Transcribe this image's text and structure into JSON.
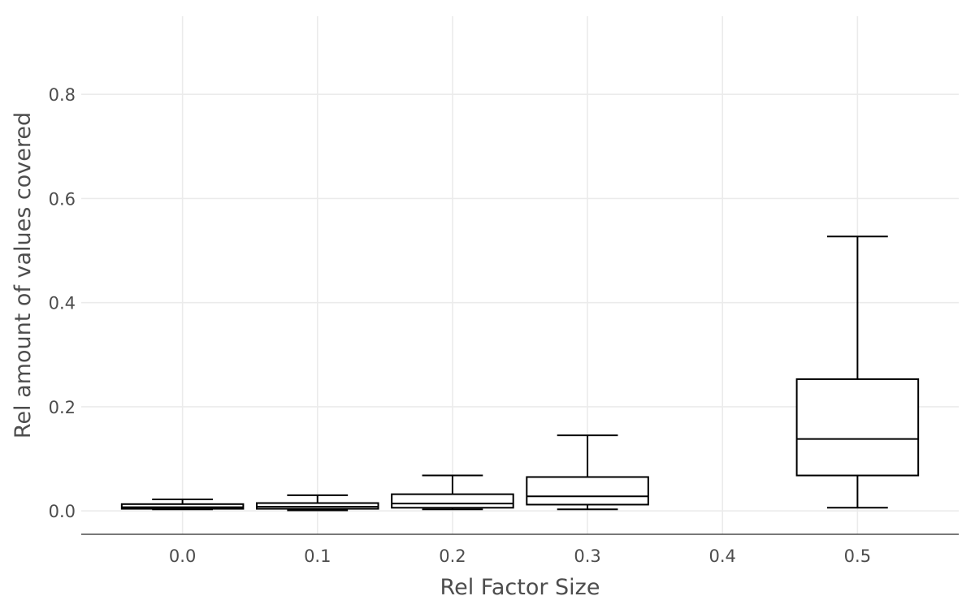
{
  "chart_data": {
    "type": "boxplot",
    "title": "",
    "xlabel": "Rel Factor Size",
    "ylabel": "Rel amount of values covered",
    "x_ticks": [
      "0.0",
      "0.1",
      "0.2",
      "0.3",
      "0.4",
      "0.5"
    ],
    "y_ticks": [
      "0.0",
      "0.2",
      "0.4",
      "0.6",
      "0.8"
    ],
    "xlim": [
      -0.075,
      0.575
    ],
    "ylim": [
      -0.045,
      0.95
    ],
    "grid": true,
    "box_width": 0.09,
    "boxes": [
      {
        "x": 0.0,
        "min": 0.003,
        "q1": 0.004,
        "median": 0.007,
        "q3": 0.013,
        "max": 0.022
      },
      {
        "x": 0.1,
        "min": 0.001,
        "q1": 0.004,
        "median": 0.008,
        "q3": 0.015,
        "max": 0.03
      },
      {
        "x": 0.2,
        "min": 0.003,
        "q1": 0.006,
        "median": 0.014,
        "q3": 0.032,
        "max": 0.068
      },
      {
        "x": 0.3,
        "min": 0.003,
        "q1": 0.012,
        "median": 0.028,
        "q3": 0.065,
        "max": 0.145
      },
      {
        "x": 0.5,
        "min": 0.006,
        "q1": 0.068,
        "median": 0.138,
        "q3": 0.253,
        "max": 0.527
      }
    ],
    "colors": {
      "box_stroke": "#000000",
      "box_fill": "#ffffff",
      "grid": "#ebebeb",
      "text": "#4d4d4d"
    }
  }
}
